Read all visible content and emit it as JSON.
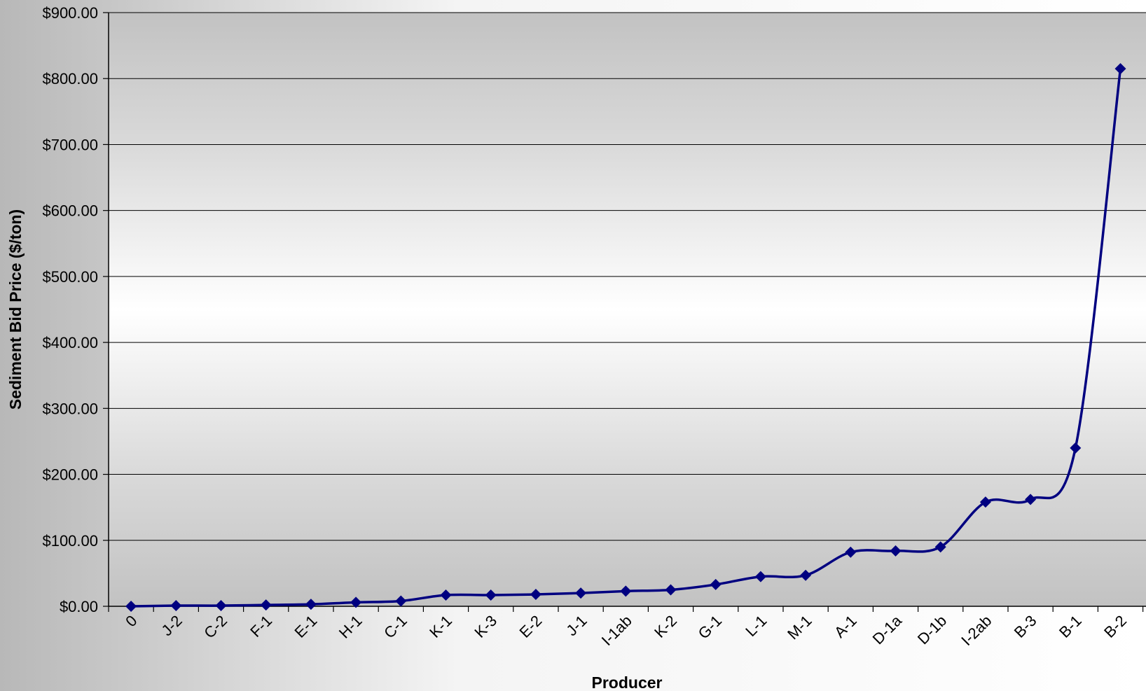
{
  "chart_data": {
    "type": "line",
    "title": "",
    "xlabel": "Producer",
    "ylabel": "Sediment Bid Price ($/ton)",
    "ylim": [
      0,
      900
    ],
    "yticks": [
      "$0.00",
      "$100.00",
      "$200.00",
      "$300.00",
      "$400.00",
      "$500.00",
      "$600.00",
      "$700.00",
      "$800.00",
      "$900.00"
    ],
    "grid": true,
    "legend": "none",
    "line_color": "#000080",
    "plot_background": "gray-white-gray vertical gradient",
    "categories": [
      "0",
      "J-2",
      "C-2",
      "F-1",
      "E-1",
      "H-1",
      "C-1",
      "K-1",
      "K-3",
      "E-2",
      "J-1",
      "I-1ab",
      "K-2",
      "G-1",
      "L-1",
      "M-1",
      "A-1",
      "D-1a",
      "D-1b",
      "I-2ab",
      "B-3",
      "B-1",
      "B-2"
    ],
    "series": [
      {
        "values": [
          0,
          1,
          1,
          2,
          3,
          6,
          8,
          17,
          17,
          18,
          20,
          23,
          25,
          33,
          45,
          47,
          82,
          84,
          90,
          158,
          162,
          240,
          815
        ]
      }
    ]
  }
}
